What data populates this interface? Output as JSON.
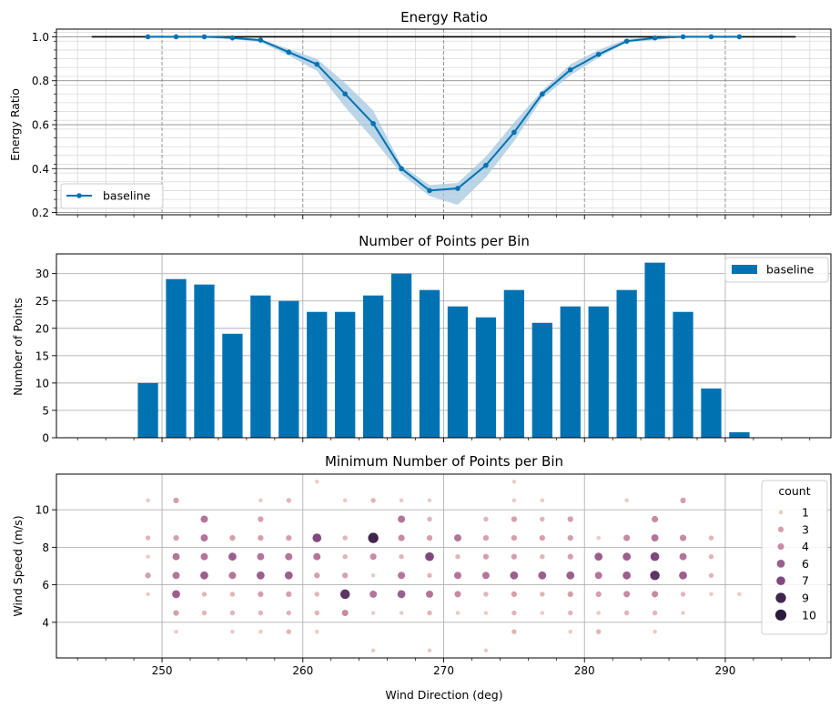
{
  "colors": {
    "baseline": "#0072b2",
    "band": "#a6c8e0",
    "reference_line": "#000000",
    "grid_major": "#8c8c8c",
    "grid_minor": "#d9d9d9",
    "count_scale": [
      "#eccbc5",
      "#ddaab1",
      "#c88aa2",
      "#a86a95",
      "#80497e",
      "#4b2c55",
      "#2b1a3a"
    ]
  },
  "chart_data": [
    {
      "id": "energy-ratio",
      "type": "line",
      "title": "Energy Ratio",
      "xlabel": "",
      "ylabel": "Energy Ratio",
      "xlim": [
        242.5,
        297.5
      ],
      "ylim": [
        0.19,
        1.035
      ],
      "yticks": [
        0.2,
        0.4,
        0.6,
        0.8,
        1.0
      ],
      "ytick_labels": [
        "0.2",
        "0.4",
        "0.6",
        "0.8",
        "1.0"
      ],
      "reference_line": {
        "x": [
          245,
          295
        ],
        "y": 1.0
      },
      "legend": {
        "position": "lower-left",
        "entries": [
          "baseline"
        ]
      },
      "series": [
        {
          "name": "baseline",
          "x": [
            249,
            251,
            253,
            255,
            257,
            259,
            261,
            263,
            265,
            267,
            269,
            271,
            273,
            275,
            277,
            279,
            281,
            283,
            285,
            287,
            289,
            291
          ],
          "y": [
            1.0,
            1.0,
            1.0,
            0.995,
            0.985,
            0.93,
            0.875,
            0.74,
            0.605,
            0.4,
            0.3,
            0.31,
            0.415,
            0.565,
            0.74,
            0.85,
            0.92,
            0.98,
            0.995,
            1.0,
            1.0,
            1.0
          ],
          "lower": [
            1.0,
            1.0,
            1.0,
            0.99,
            0.975,
            0.915,
            0.845,
            0.68,
            0.535,
            0.375,
            0.275,
            0.235,
            0.36,
            0.525,
            0.72,
            0.825,
            0.905,
            0.975,
            0.985,
            1.0,
            1.0,
            1.0
          ],
          "upper": [
            1.0,
            1.0,
            1.0,
            1.0,
            0.99,
            0.945,
            0.9,
            0.79,
            0.665,
            0.415,
            0.325,
            0.335,
            0.455,
            0.61,
            0.755,
            0.875,
            0.94,
            0.99,
            1.0,
            1.0,
            1.0,
            1.0
          ]
        }
      ]
    },
    {
      "id": "points-per-bin",
      "type": "bar",
      "title": "Number of Points per Bin",
      "xlabel": "",
      "ylabel": "Number of Points",
      "xlim": [
        242.5,
        297.5
      ],
      "ylim": [
        0,
        33.6
      ],
      "yticks": [
        0,
        5,
        10,
        15,
        20,
        25,
        30
      ],
      "ytick_labels": [
        "0",
        "5",
        "10",
        "15",
        "20",
        "25",
        "30"
      ],
      "legend": {
        "position": "top-right",
        "entries": [
          "baseline"
        ]
      },
      "series": [
        {
          "name": "baseline",
          "x": [
            249,
            251,
            253,
            255,
            257,
            259,
            261,
            263,
            265,
            267,
            269,
            271,
            273,
            275,
            277,
            279,
            281,
            283,
            285,
            287,
            289,
            291
          ],
          "values": [
            10,
            29,
            28,
            19,
            26,
            25,
            23,
            23,
            26,
            30,
            27,
            24,
            22,
            27,
            21,
            24,
            24,
            27,
            32,
            23,
            9,
            1
          ]
        }
      ]
    },
    {
      "id": "min-points-per-bin",
      "type": "scatter",
      "title": "Minimum Number of Points per Bin",
      "xlabel": "Wind Direction (deg)",
      "ylabel": "Wind Speed (m/s)",
      "xlim": [
        242.5,
        297.5
      ],
      "ylim": [
        2.1,
        11.9
      ],
      "xticks": [
        250,
        260,
        270,
        280,
        290
      ],
      "xtick_labels": [
        "250",
        "260",
        "270",
        "280",
        "290"
      ],
      "yticks": [
        4,
        6,
        8,
        10
      ],
      "ytick_labels": [
        "4",
        "6",
        "8",
        "10"
      ],
      "legend": {
        "title": "count",
        "position": "top-right",
        "entries": [
          "1",
          "3",
          "4",
          "6",
          "7",
          "9",
          "10"
        ]
      },
      "points": [
        [
          249,
          10.5,
          1
        ],
        [
          249,
          8.5,
          2
        ],
        [
          249,
          7.5,
          1
        ],
        [
          249,
          6.5,
          3
        ],
        [
          249,
          5.5,
          1
        ],
        [
          251,
          10.5,
          3
        ],
        [
          251,
          8.5,
          3
        ],
        [
          251,
          7.5,
          5
        ],
        [
          251,
          6.5,
          5
        ],
        [
          251,
          5.5,
          6
        ],
        [
          251,
          4.5,
          3
        ],
        [
          251,
          3.5,
          1
        ],
        [
          253,
          9.5,
          5
        ],
        [
          253,
          8.5,
          5
        ],
        [
          253,
          7.5,
          5
        ],
        [
          253,
          6.5,
          6
        ],
        [
          253,
          5.5,
          2
        ],
        [
          253,
          4.5,
          2
        ],
        [
          255,
          8.5,
          3
        ],
        [
          255,
          7.5,
          6
        ],
        [
          255,
          6.5,
          5
        ],
        [
          255,
          5.5,
          2
        ],
        [
          255,
          4.5,
          2
        ],
        [
          255,
          3.5,
          1
        ],
        [
          257,
          10.5,
          1
        ],
        [
          257,
          9.5,
          3
        ],
        [
          257,
          8.5,
          3
        ],
        [
          257,
          7.5,
          5
        ],
        [
          257,
          6.5,
          6
        ],
        [
          257,
          5.5,
          3
        ],
        [
          257,
          4.5,
          2
        ],
        [
          257,
          3.5,
          1
        ],
        [
          259,
          10.5,
          2
        ],
        [
          259,
          8.5,
          3
        ],
        [
          259,
          7.5,
          5
        ],
        [
          259,
          6.5,
          6
        ],
        [
          259,
          5.5,
          3
        ],
        [
          259,
          4.5,
          2
        ],
        [
          259,
          3.5,
          2
        ],
        [
          261,
          11.5,
          1
        ],
        [
          261,
          8.5,
          7
        ],
        [
          261,
          7.5,
          5
        ],
        [
          261,
          6.5,
          3
        ],
        [
          261,
          5.5,
          2
        ],
        [
          261,
          4.5,
          2
        ],
        [
          261,
          3.5,
          1
        ],
        [
          263,
          10.5,
          1
        ],
        [
          263,
          8.5,
          2
        ],
        [
          263,
          7.5,
          2
        ],
        [
          263,
          6.5,
          3
        ],
        [
          263,
          5.5,
          8
        ],
        [
          263,
          4.5,
          4
        ],
        [
          265,
          10.5,
          2
        ],
        [
          265,
          8.5,
          9
        ],
        [
          265,
          7.5,
          4
        ],
        [
          265,
          6.5,
          1
        ],
        [
          265,
          5.5,
          5
        ],
        [
          265,
          4.5,
          1
        ],
        [
          265,
          2.5,
          1
        ],
        [
          267,
          10.5,
          1
        ],
        [
          267,
          9.5,
          5
        ],
        [
          267,
          8.5,
          4
        ],
        [
          267,
          7.5,
          2
        ],
        [
          267,
          6.5,
          5
        ],
        [
          267,
          5.5,
          6
        ],
        [
          267,
          4.5,
          1
        ],
        [
          269,
          10.5,
          1
        ],
        [
          269,
          9.5,
          2
        ],
        [
          269,
          8.5,
          3
        ],
        [
          269,
          7.5,
          7
        ],
        [
          269,
          6.5,
          2
        ],
        [
          269,
          5.5,
          5
        ],
        [
          269,
          4.5,
          2
        ],
        [
          269,
          2.5,
          1
        ],
        [
          271,
          8.5,
          5
        ],
        [
          271,
          7.5,
          2
        ],
        [
          271,
          6.5,
          5
        ],
        [
          271,
          5.5,
          4
        ],
        [
          271,
          4.5,
          1
        ],
        [
          273,
          9.5,
          2
        ],
        [
          273,
          8.5,
          3
        ],
        [
          273,
          7.5,
          3
        ],
        [
          273,
          6.5,
          5
        ],
        [
          273,
          5.5,
          2
        ],
        [
          273,
          4.5,
          1
        ],
        [
          273,
          2.5,
          1
        ],
        [
          275,
          11.5,
          1
        ],
        [
          275,
          10.5,
          1
        ],
        [
          275,
          9.5,
          3
        ],
        [
          275,
          8.5,
          3
        ],
        [
          275,
          7.5,
          3
        ],
        [
          275,
          6.5,
          6
        ],
        [
          275,
          5.5,
          3
        ],
        [
          275,
          4.5,
          2
        ],
        [
          275,
          3.5,
          2
        ],
        [
          277,
          10.5,
          1
        ],
        [
          277,
          9.5,
          2
        ],
        [
          277,
          8.5,
          3
        ],
        [
          277,
          7.5,
          2
        ],
        [
          277,
          6.5,
          6
        ],
        [
          277,
          5.5,
          2
        ],
        [
          277,
          4.5,
          1
        ],
        [
          279,
          9.5,
          3
        ],
        [
          279,
          8.5,
          3
        ],
        [
          279,
          7.5,
          3
        ],
        [
          279,
          6.5,
          6
        ],
        [
          279,
          5.5,
          3
        ],
        [
          279,
          4.5,
          2
        ],
        [
          279,
          3.5,
          1
        ],
        [
          281,
          8.5,
          1
        ],
        [
          281,
          7.5,
          6
        ],
        [
          281,
          6.5,
          5
        ],
        [
          281,
          5.5,
          3
        ],
        [
          281,
          4.5,
          1
        ],
        [
          281,
          3.5,
          2
        ],
        [
          283,
          10.5,
          1
        ],
        [
          283,
          8.5,
          4
        ],
        [
          283,
          7.5,
          6
        ],
        [
          283,
          6.5,
          6
        ],
        [
          283,
          5.5,
          4
        ],
        [
          283,
          4.5,
          2
        ],
        [
          285,
          9.5,
          4
        ],
        [
          285,
          8.5,
          5
        ],
        [
          285,
          7.5,
          7
        ],
        [
          285,
          6.5,
          8
        ],
        [
          285,
          5.5,
          4
        ],
        [
          285,
          4.5,
          2
        ],
        [
          285,
          3.5,
          1
        ],
        [
          287,
          10.5,
          3
        ],
        [
          287,
          8.5,
          4
        ],
        [
          287,
          7.5,
          5
        ],
        [
          287,
          6.5,
          6
        ],
        [
          287,
          5.5,
          2
        ],
        [
          287,
          4.5,
          1
        ],
        [
          289,
          8.5,
          2
        ],
        [
          289,
          7.5,
          2
        ],
        [
          289,
          6.5,
          2
        ],
        [
          289,
          5.5,
          1
        ],
        [
          291,
          5.5,
          1
        ]
      ]
    }
  ]
}
